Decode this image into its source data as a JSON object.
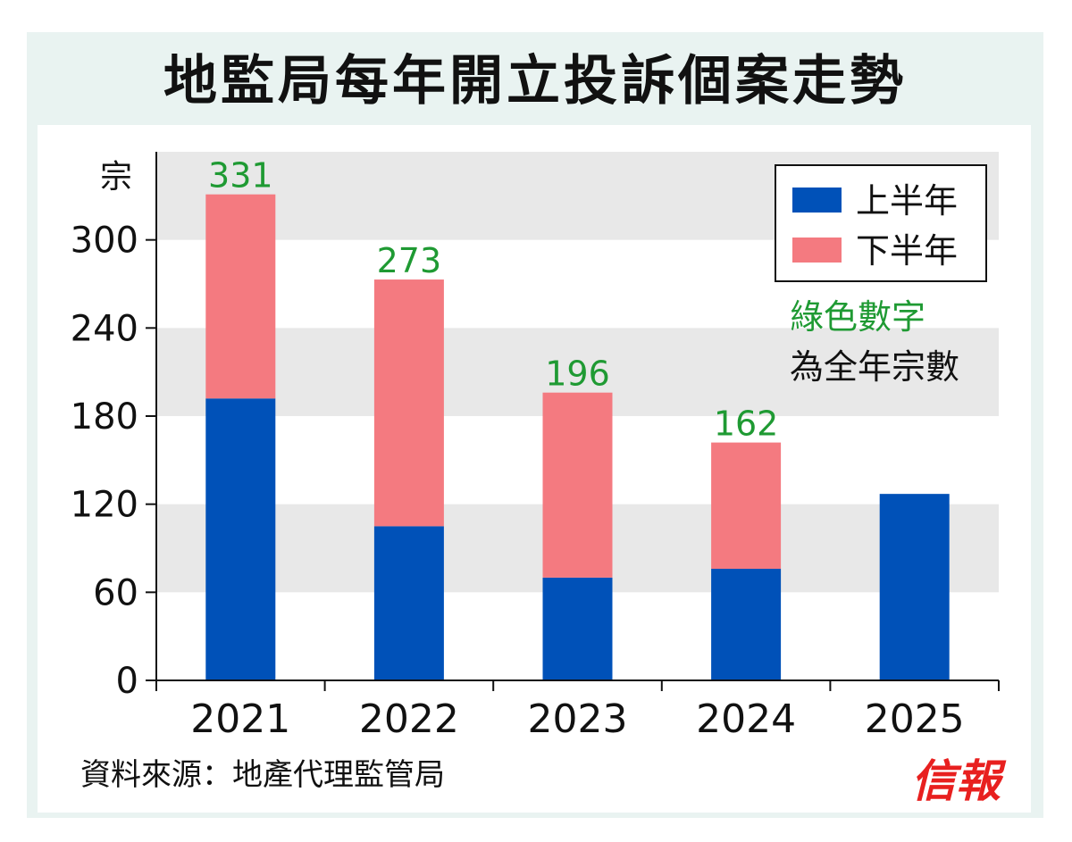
{
  "header": {
    "title": "地監局每年開立投訴個案走勢"
  },
  "footer": {
    "source": "資料來源：地產代理監管局",
    "brand": "信報"
  },
  "colors": {
    "first_half": "#0051b8",
    "second_half": "#f47a80",
    "total_label": "#1f9a33",
    "band": "#e8e8e8"
  },
  "chart_data": {
    "type": "bar",
    "stacked": true,
    "categories": [
      "2021",
      "2022",
      "2023",
      "2024",
      "2025"
    ],
    "series": [
      {
        "name": "上半年",
        "values": [
          192,
          105,
          70,
          76,
          127
        ]
      },
      {
        "name": "下半年",
        "values": [
          139,
          168,
          126,
          86,
          null
        ]
      }
    ],
    "totals": [
      331,
      273,
      196,
      162,
      null
    ],
    "ylabel": "宗",
    "ylim": [
      0,
      360
    ],
    "yticks": [
      0,
      60,
      120,
      180,
      240,
      300
    ],
    "legend_position": "top-right",
    "annotation": {
      "line1": "綠色數字",
      "line2": "為全年宗數"
    },
    "grid": "alternating horizontal bands"
  }
}
